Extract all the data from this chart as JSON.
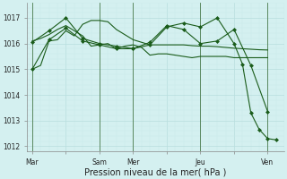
{
  "background_color": "#d4f0f0",
  "grid_color_major": "#b8dede",
  "grid_color_minor": "#c8eaea",
  "line_color": "#1a5c1a",
  "xlabel": "Pression niveau de la mer( hPa )",
  "xlabel_fontsize": 7,
  "ylim": [
    1011.8,
    1017.6
  ],
  "yticks": [
    1012,
    1013,
    1014,
    1015,
    1016,
    1017
  ],
  "xtick_labels": [
    "Mar",
    "",
    "Sam",
    "Mer",
    "",
    "Jeu",
    "",
    "Ven"
  ],
  "xtick_positions": [
    0,
    12,
    24,
    36,
    48,
    60,
    72,
    84
  ],
  "vlines": [
    0,
    24,
    36,
    60,
    84
  ],
  "xlim": [
    -2,
    90
  ],
  "series1_x": [
    0,
    6,
    12,
    18,
    24,
    30,
    36,
    42,
    48,
    54,
    60,
    66,
    72,
    78,
    84
  ],
  "series1": [
    1015.0,
    1016.15,
    1016.6,
    1016.1,
    1015.95,
    1015.8,
    1015.8,
    1016.05,
    1016.7,
    1016.55,
    1016.0,
    1016.1,
    1016.55,
    1015.15,
    1013.35
  ],
  "series1_markers": true,
  "series2_x": [
    0,
    6,
    12,
    18,
    24,
    30,
    36,
    42,
    48,
    54,
    60,
    66,
    72,
    75,
    78,
    81,
    84,
    87
  ],
  "series2": [
    1016.05,
    1016.5,
    1017.0,
    1016.2,
    1016.0,
    1015.9,
    1015.8,
    1015.95,
    1016.65,
    1016.8,
    1016.65,
    1017.0,
    1016.0,
    1015.2,
    1013.3,
    1012.65,
    1012.3,
    1012.25
  ],
  "series2_markers": true,
  "series3_x": [
    0,
    3,
    6,
    9,
    12,
    15,
    18,
    21,
    24,
    27,
    30,
    33,
    36,
    39,
    42,
    45,
    48,
    51,
    54,
    57,
    60,
    63,
    66,
    69,
    72,
    75,
    78,
    81,
    84
  ],
  "series3": [
    1016.1,
    1016.2,
    1016.35,
    1016.55,
    1016.7,
    1016.5,
    1016.3,
    1015.9,
    1015.95,
    1016.0,
    1015.8,
    1015.9,
    1015.95,
    1015.85,
    1015.55,
    1015.6,
    1015.6,
    1015.55,
    1015.5,
    1015.45,
    1015.5,
    1015.5,
    1015.5,
    1015.5,
    1015.45,
    1015.45,
    1015.45,
    1015.45,
    1015.45
  ],
  "series3_markers": false,
  "series4_x": [
    0,
    3,
    6,
    9,
    12,
    15,
    18,
    21,
    24,
    27,
    30,
    33,
    36,
    39,
    42,
    45,
    48,
    51,
    54,
    57,
    60,
    63,
    66,
    69,
    72,
    75,
    78,
    81,
    84
  ],
  "series4": [
    1015.0,
    1015.15,
    1016.1,
    1016.15,
    1016.5,
    1016.3,
    1016.75,
    1016.9,
    1016.9,
    1016.85,
    1016.55,
    1016.35,
    1016.15,
    1016.05,
    1015.95,
    1015.95,
    1015.95,
    1015.95,
    1015.95,
    1015.92,
    1015.9,
    1015.9,
    1015.88,
    1015.85,
    1015.82,
    1015.8,
    1015.78,
    1015.76,
    1015.75
  ],
  "series4_markers": false,
  "figsize": [
    3.2,
    2.0
  ],
  "dpi": 100
}
